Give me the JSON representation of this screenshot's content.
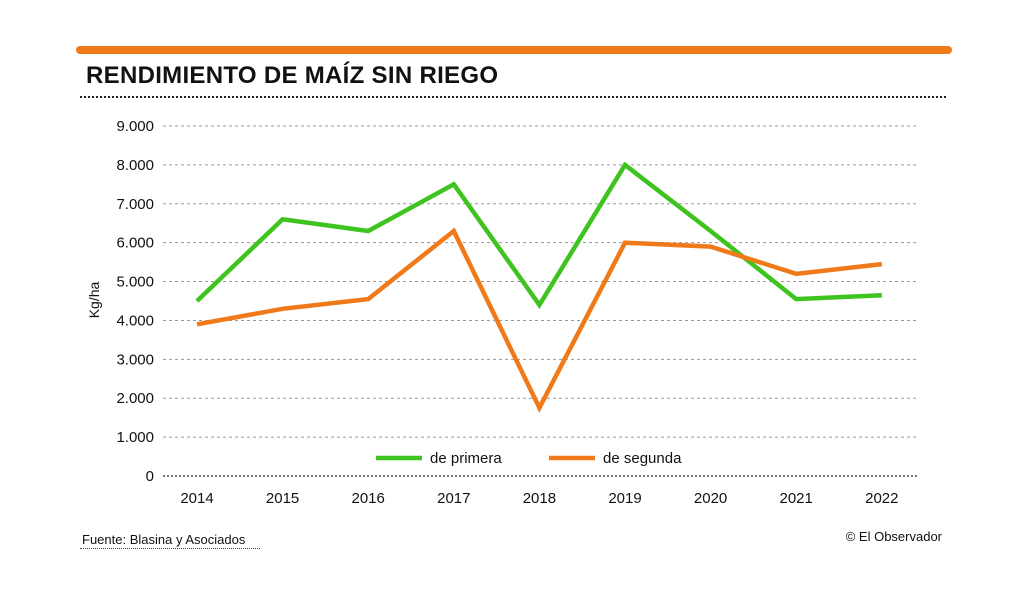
{
  "title": "RENDIMIENTO DE MAÍZ SIN RIEGO",
  "footer": {
    "source": "Fuente: Blasina y Asociados",
    "credit": "© El Observador"
  },
  "colors": {
    "accent_bar": "#f07a1a",
    "primera": "#3fc31f",
    "segunda": "#f07a1a",
    "grid": "#9a9a9a"
  },
  "chart_data": {
    "type": "line",
    "title": "RENDIMIENTO DE MAÍZ SIN RIEGO",
    "ylabel": "Kg/ha",
    "xlabel": "",
    "x": [
      "2014",
      "2015",
      "2016",
      "2017",
      "2018",
      "2019",
      "2020",
      "2021",
      "2022"
    ],
    "ylim": [
      0,
      9000
    ],
    "yticks": [
      0,
      1000,
      2000,
      3000,
      4000,
      5000,
      6000,
      7000,
      8000,
      9000
    ],
    "ytick_labels": [
      "0",
      "1.000",
      "2.000",
      "3.000",
      "4.000",
      "5.000",
      "6.000",
      "7.000",
      "8.000",
      "9.000"
    ],
    "grid": "horizontal dotted",
    "legend_position": "bottom-center",
    "series": [
      {
        "name": "de primera",
        "color": "#3fc31f",
        "values": [
          4500,
          6600,
          6300,
          7500,
          4400,
          8000,
          6300,
          4550,
          4650
        ]
      },
      {
        "name": "de segunda",
        "color": "#f07a1a",
        "values": [
          3900,
          4300,
          4550,
          6300,
          1750,
          6000,
          5900,
          5200,
          5450
        ]
      }
    ]
  }
}
